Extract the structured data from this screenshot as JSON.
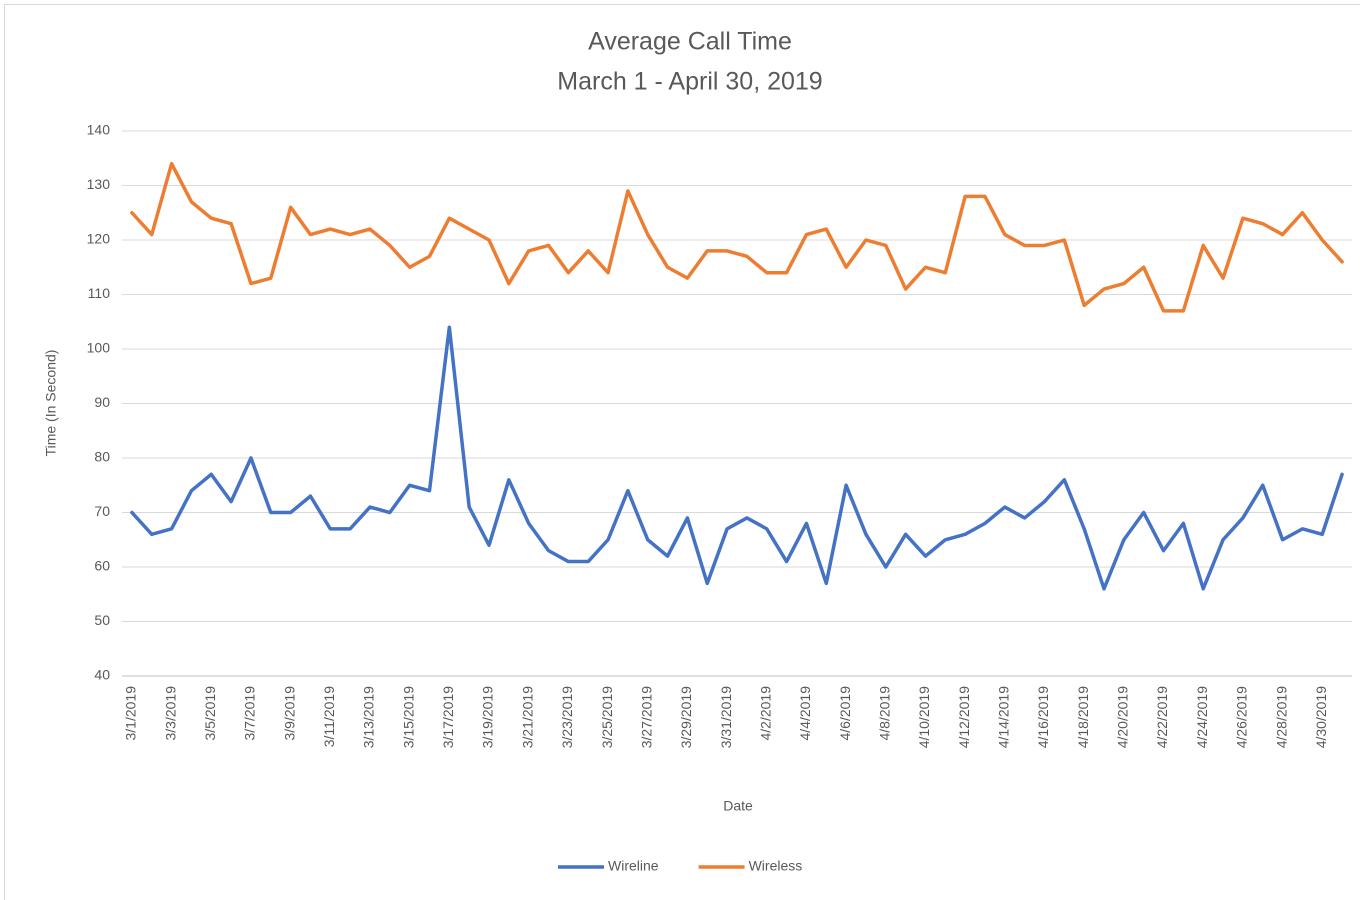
{
  "chart_data": {
    "type": "line",
    "title": "Average Call Time",
    "subtitle": "March 1 - April 30, 2019",
    "x_label": "Date",
    "y_label": "Time (In Second)",
    "categories": [
      "3/1/2019",
      null,
      "3/3/2019",
      null,
      "3/5/2019",
      null,
      "3/7/2019",
      null,
      "3/9/2019",
      null,
      "3/11/2019",
      null,
      "3/13/2019",
      null,
      "3/15/2019",
      null,
      "3/17/2019",
      null,
      "3/19/2019",
      null,
      "3/21/2019",
      null,
      "3/23/2019",
      null,
      "3/25/2019",
      null,
      "3/27/2019",
      null,
      "3/29/2019",
      null,
      "3/31/2019",
      null,
      "4/2/2019",
      null,
      "4/4/2019",
      null,
      "4/6/2019",
      null,
      "4/8/2019",
      null,
      "4/10/2019",
      null,
      "4/12/2019",
      null,
      "4/14/2019",
      null,
      "4/16/2019",
      null,
      "4/18/2019",
      null,
      "4/20/2019",
      null,
      "4/22/2019",
      null,
      "4/24/2019",
      null,
      "4/26/2019",
      null,
      "4/28/2019",
      null,
      "4/30/2019",
      null
    ],
    "series": [
      {
        "name": "Wireline",
        "color": "#4472c4",
        "values": [
          70,
          66,
          67,
          74,
          77,
          72,
          80,
          70,
          70,
          73,
          67,
          67,
          71,
          70,
          75,
          74,
          104,
          71,
          64,
          76,
          68,
          63,
          61,
          61,
          65,
          74,
          65,
          62,
          69,
          57,
          67,
          69,
          67,
          61,
          68,
          57,
          75,
          66,
          60,
          66,
          62,
          65,
          66,
          68,
          71,
          69,
          72,
          76,
          67,
          56,
          65,
          70,
          63,
          68,
          56,
          65,
          69,
          75,
          65,
          67,
          66,
          77
        ]
      },
      {
        "name": "Wireless",
        "color": "#ed7d31",
        "values": [
          125,
          121,
          134,
          127,
          124,
          123,
          112,
          113,
          126,
          121,
          122,
          121,
          122,
          119,
          115,
          117,
          124,
          122,
          120,
          112,
          118,
          119,
          114,
          118,
          114,
          129,
          121,
          115,
          113,
          118,
          118,
          117,
          114,
          114,
          121,
          122,
          115,
          120,
          119,
          111,
          115,
          114,
          128,
          128,
          121,
          119,
          119,
          120,
          108,
          111,
          112,
          115,
          107,
          107,
          119,
          113,
          124,
          123,
          121,
          125,
          120,
          116
        ]
      }
    ],
    "ylim": [
      40,
      140
    ],
    "yticks": [
      40,
      50,
      60,
      70,
      80,
      90,
      100,
      110,
      120,
      130,
      140
    ],
    "grid": true,
    "legend": "bottom"
  }
}
